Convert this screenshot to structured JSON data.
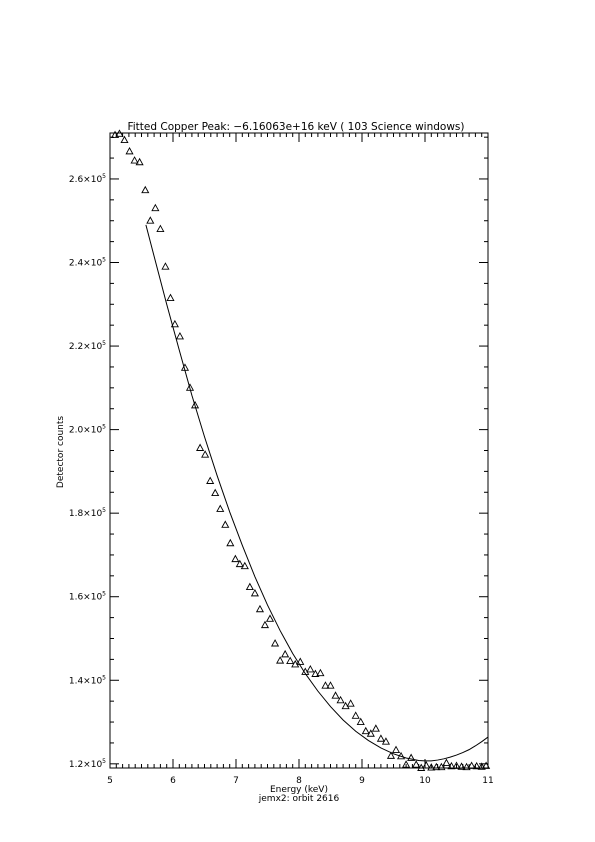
{
  "chart_data": {
    "type": "scatter",
    "title": "Fitted Copper Peak:  −6.16063e+16 keV (         103 Science windows)",
    "xlabel": "Energy (keV)",
    "ylabel": "Detector counts",
    "subtitle": "jemx2: orbit 2616",
    "xlim": [
      5,
      11
    ],
    "ylim": [
      119000,
      271000
    ],
    "x_ticks": [
      "5",
      "6",
      "7",
      "8",
      "9",
      "10",
      "11"
    ],
    "y_ticks": [
      {
        "value": 120000,
        "mantissa": "1.2",
        "base": "×10",
        "exp": "5"
      },
      {
        "value": 140000,
        "mantissa": "1.4",
        "base": "×10",
        "exp": "5"
      },
      {
        "value": 160000,
        "mantissa": "1.6",
        "base": "×10",
        "exp": "5"
      },
      {
        "value": 180000,
        "mantissa": "1.8",
        "base": "×10",
        "exp": "5"
      },
      {
        "value": 200000,
        "mantissa": "2.0",
        "base": "×10",
        "exp": "5"
      },
      {
        "value": 220000,
        "mantissa": "2.2",
        "base": "×10",
        "exp": "5"
      },
      {
        "value": 240000,
        "mantissa": "2.4",
        "base": "×10",
        "exp": "5"
      },
      {
        "value": 260000,
        "mantissa": "2.6",
        "base": "×10",
        "exp": "5"
      }
    ],
    "grid": false,
    "series": [
      {
        "marker": "triangle",
        "x": [
          5.08,
          5.15,
          5.23,
          5.31,
          5.39,
          5.47,
          5.56,
          5.64,
          5.72,
          5.8,
          5.88,
          5.96,
          6.03,
          6.11,
          6.19,
          6.27,
          6.35,
          6.43,
          6.51,
          6.59,
          6.67,
          6.75,
          6.83,
          6.91,
          6.99,
          7.06,
          7.14,
          7.22,
          7.3,
          7.38,
          7.46,
          7.54,
          7.62,
          7.7,
          7.78,
          7.86,
          7.94,
          8.02,
          8.1,
          8.18,
          8.26,
          8.34,
          8.42,
          8.5,
          8.58,
          8.66,
          8.74,
          8.82,
          8.9,
          8.98,
          9.06,
          9.14,
          9.22,
          9.3,
          9.38,
          9.46,
          9.54,
          9.62,
          9.7,
          9.78,
          9.86,
          9.94,
          10.02,
          10.1,
          10.18,
          10.26,
          10.34,
          10.42,
          10.5,
          10.58,
          10.66,
          10.74,
          10.82,
          10.9,
          10.97
        ],
        "y": [
          270500,
          270800,
          269300,
          266600,
          264400,
          264000,
          257300,
          250000,
          253000,
          248000,
          239000,
          231500,
          225200,
          222300,
          214800,
          210000,
          205800,
          195600,
          194000,
          187700,
          184800,
          181000,
          177200,
          172800,
          169000,
          167800,
          167300,
          162300,
          160800,
          157000,
          153200,
          154700,
          148800,
          144700,
          146200,
          144600,
          143800,
          144400,
          142000,
          142600,
          141500,
          141700,
          138700,
          138700,
          136300,
          135200,
          133800,
          134400,
          131500,
          130000,
          127800,
          127200,
          128400,
          126000,
          125300,
          121900,
          123300,
          121800,
          119800,
          121400,
          119800,
          119000,
          119600,
          119100,
          119200,
          119200,
          120200,
          119400,
          119500,
          119300,
          119200,
          119500,
          119400,
          119300,
          119500
        ]
      },
      {
        "marker": "line",
        "x": [
          5.57,
          5.7,
          5.9,
          6.1,
          6.3,
          6.5,
          6.7,
          6.9,
          7.1,
          7.3,
          7.5,
          7.7,
          7.9,
          8.1,
          8.3,
          8.5,
          8.7,
          8.9,
          9.1,
          9.3,
          9.5,
          9.7,
          9.9,
          10.0,
          10.1,
          10.2,
          10.3,
          10.4,
          10.5,
          10.6,
          10.7,
          10.8,
          10.9,
          11.0
        ],
        "y": [
          249000,
          241500,
          230000,
          219000,
          208200,
          198300,
          189000,
          180300,
          172300,
          164800,
          158000,
          151900,
          146400,
          141600,
          137400,
          133700,
          130500,
          127800,
          125600,
          123800,
          122400,
          121400,
          120800,
          120700,
          120700,
          120900,
          121200,
          121600,
          122100,
          122700,
          123400,
          124300,
          125300,
          126400
        ]
      }
    ]
  }
}
